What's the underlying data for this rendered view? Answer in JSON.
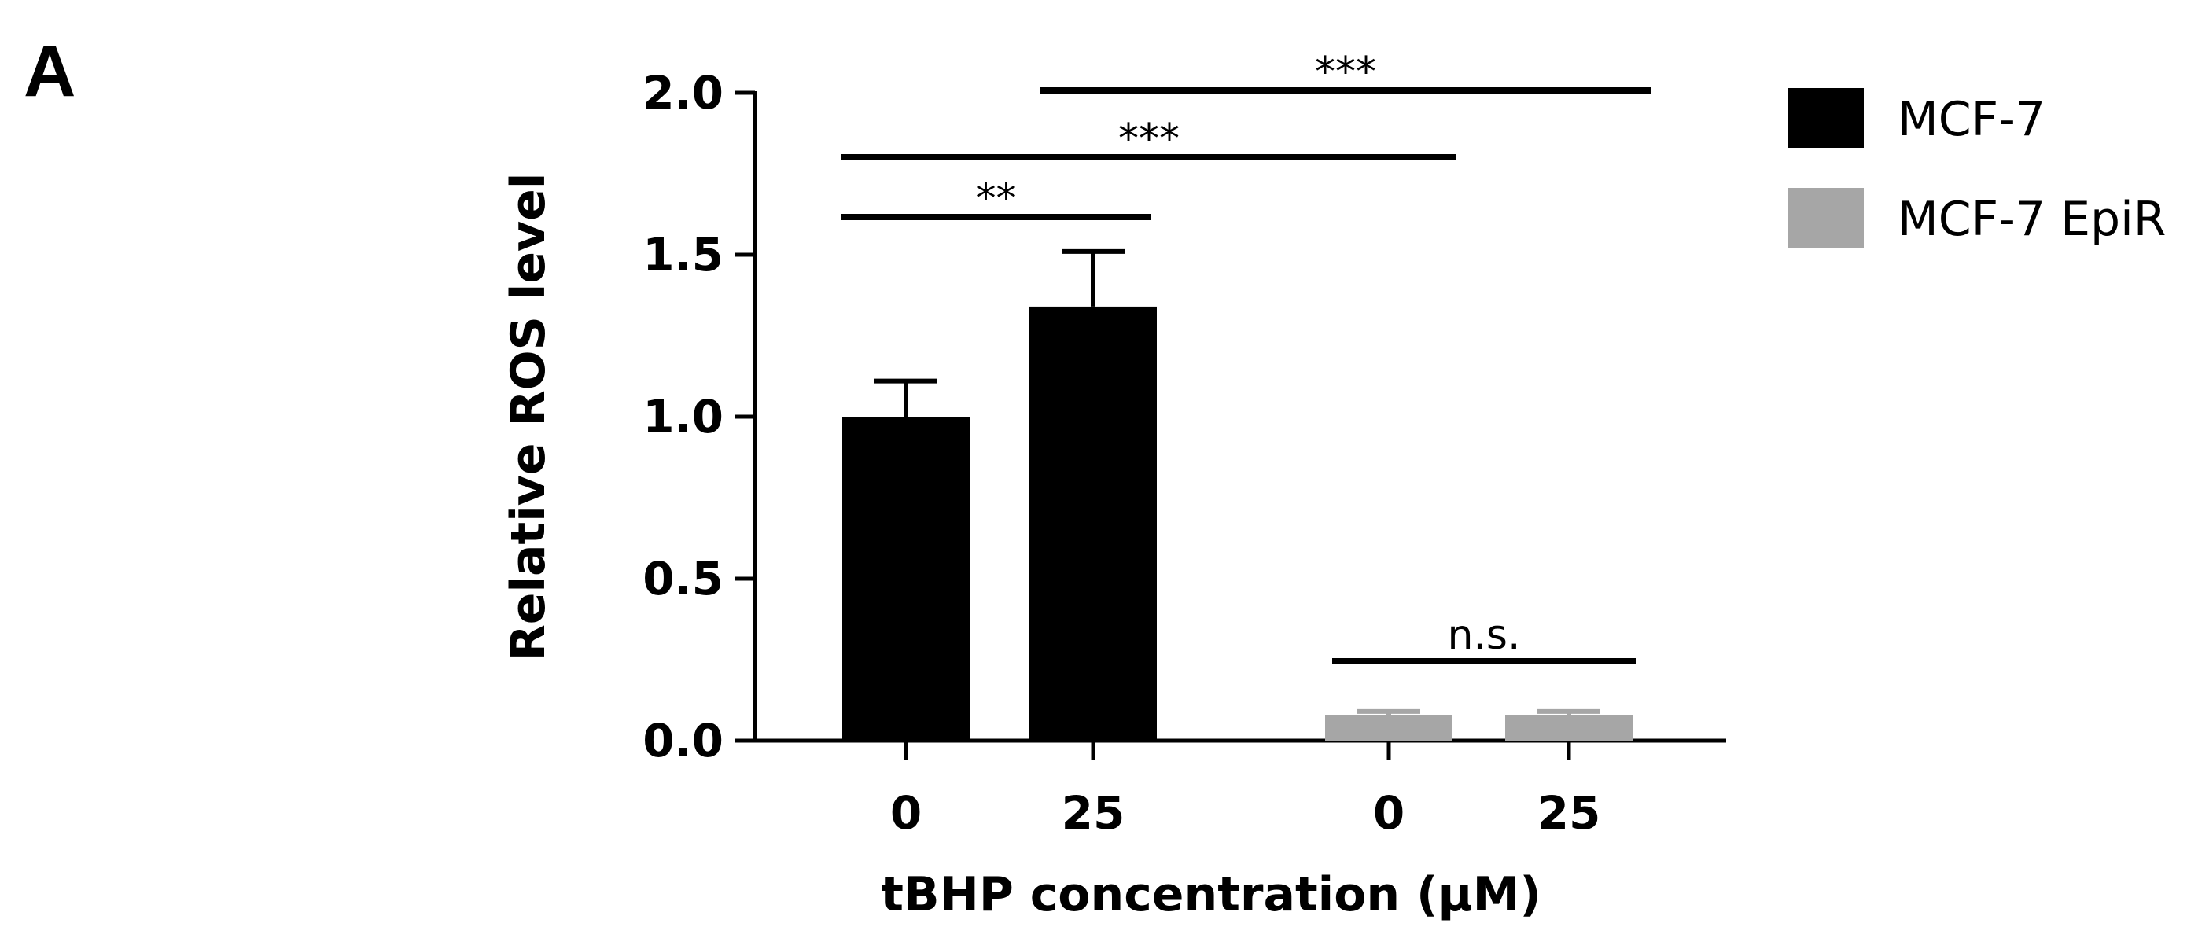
{
  "panel_label": "A",
  "chart_data": {
    "type": "bar",
    "ylabel": "Relative ROS level",
    "xlabel": "tBHP concentration (μM)",
    "ylim": [
      0,
      2.0
    ],
    "yticks": [
      0.0,
      0.5,
      1.0,
      1.5,
      2.0
    ],
    "ytick_labels": [
      "0.0",
      "0.5",
      "1.0",
      "1.5",
      "2.0"
    ],
    "grid": false,
    "legend_position": "top-right",
    "series": [
      {
        "name": "MCF-7",
        "color": "#000000",
        "bars": [
          {
            "label": "0",
            "value": 1.0,
            "error": 0.11
          },
          {
            "label": "25",
            "value": 1.34,
            "error": 0.17
          }
        ]
      },
      {
        "name": "MCF-7 EpiR",
        "color": "#a6a6a6",
        "bars": [
          {
            "label": "0",
            "value": 0.08,
            "error": 0.01
          },
          {
            "label": "25",
            "value": 0.08,
            "error": 0.01
          }
        ]
      }
    ],
    "annotations": [
      {
        "text": "**",
        "from_bar": 0,
        "to_bar": 1,
        "y": 1.8
      },
      {
        "text": "***",
        "from_bar": 0,
        "to_bar": 2,
        "y": 1.8
      },
      {
        "text": "***",
        "from_bar": 1,
        "to_bar": 3,
        "y": 2.0
      },
      {
        "text": "n.s.",
        "from_bar": 2,
        "to_bar": 3,
        "y": 0.24
      }
    ]
  }
}
